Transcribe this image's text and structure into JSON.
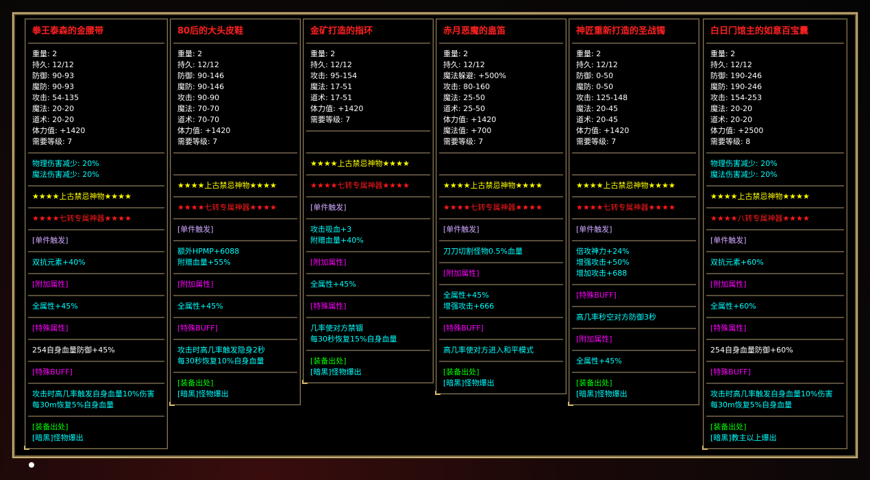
{
  "colors": {
    "white": "#ffffff",
    "cyan": "#00ffff",
    "yellow": "#ffff00",
    "red": "#ff1a1a",
    "lavender": "#d0a8ff",
    "magenta": "#ff00ff",
    "green": "#00ff00",
    "title": "#ff2020",
    "border": "#c9b07a"
  },
  "cards": [
    {
      "title": "拳王泰森的金腰带",
      "sections": [
        {
          "lines": [
            {
              "t": "重量: 2",
              "c": "white"
            },
            {
              "t": "持久: 12/12",
              "c": "white"
            },
            {
              "t": "防御: 90-93",
              "c": "white"
            },
            {
              "t": "魔防: 90-93",
              "c": "white"
            },
            {
              "t": "攻击: 54-135",
              "c": "white"
            },
            {
              "t": "魔法: 20-20",
              "c": "white"
            },
            {
              "t": "道术: 20-20",
              "c": "white"
            },
            {
              "t": "体力值: +1420",
              "c": "white"
            },
            {
              "t": "需要等级: 7",
              "c": "white"
            }
          ]
        },
        {
          "lines": [
            {
              "t": "物理伤害减少: 20%",
              "c": "cyan"
            },
            {
              "t": "魔法伤害减少: 20%",
              "c": "cyan"
            }
          ]
        },
        {
          "lines": [
            {
              "t": "★★★★上古禁忌神物★★★★",
              "c": "yellow"
            }
          ]
        },
        {
          "lines": [
            {
              "t": "★★★★七转专属神器★★★★",
              "c": "red"
            }
          ]
        },
        {
          "lines": [
            {
              "t": "[单件触发]",
              "c": "lavender"
            }
          ]
        },
        {
          "lines": [
            {
              "t": "双抗元素+40%",
              "c": "cyan"
            }
          ]
        },
        {
          "lines": [
            {
              "t": "[附加属性]",
              "c": "magenta"
            }
          ]
        },
        {
          "lines": [
            {
              "t": "全属性+45%",
              "c": "cyan"
            }
          ]
        },
        {
          "lines": [
            {
              "t": "[特殊属性]",
              "c": "magenta"
            }
          ]
        },
        {
          "lines": [
            {
              "t": "254自身血量防御+45%",
              "c": "white"
            }
          ]
        },
        {
          "lines": [
            {
              "t": "[特殊BUFF]",
              "c": "magenta"
            }
          ]
        },
        {
          "lines": [
            {
              "t": "攻击时高几率触发自身血量10%伤害",
              "c": "cyan"
            },
            {
              "t": "每30m恢复5%自身血量",
              "c": "cyan"
            }
          ]
        },
        {
          "lines": [
            {
              "t": "[装备出处]",
              "c": "green"
            },
            {
              "t": "[暗黑]怪物爆出",
              "c": "cyan"
            }
          ]
        }
      ]
    },
    {
      "title": "80后的大头皮鞋",
      "sections": [
        {
          "lines": [
            {
              "t": "重量: 2",
              "c": "white"
            },
            {
              "t": "持久: 12/12",
              "c": "white"
            },
            {
              "t": "防御: 90-146",
              "c": "white"
            },
            {
              "t": "魔防: 90-146",
              "c": "white"
            },
            {
              "t": "攻击: 90-90",
              "c": "white"
            },
            {
              "t": "魔法: 70-70",
              "c": "white"
            },
            {
              "t": "道术: 70-70",
              "c": "white"
            },
            {
              "t": "体力值: +1420",
              "c": "white"
            },
            {
              "t": "需要等级: 7",
              "c": "white"
            }
          ]
        },
        {
          "lines": []
        },
        {
          "lines": [
            {
              "t": "★★★★上古禁忌神物★★★★",
              "c": "yellow"
            }
          ]
        },
        {
          "lines": [
            {
              "t": "★★★★七转专属神器★★★★",
              "c": "red"
            }
          ]
        },
        {
          "lines": [
            {
              "t": "[单件触发]",
              "c": "lavender"
            }
          ]
        },
        {
          "lines": [
            {
              "t": "额外HPMP+6088",
              "c": "cyan"
            },
            {
              "t": "附赠血量+55%",
              "c": "cyan"
            }
          ]
        },
        {
          "lines": [
            {
              "t": "[附加属性]",
              "c": "magenta"
            }
          ]
        },
        {
          "lines": [
            {
              "t": "全属性+45%",
              "c": "cyan"
            }
          ]
        },
        {
          "lines": [
            {
              "t": "[特殊BUFF]",
              "c": "magenta"
            }
          ]
        },
        {
          "lines": [
            {
              "t": "攻击时高几率触发隐身2秒",
              "c": "cyan"
            },
            {
              "t": "每30秒恢复10%自身血量",
              "c": "cyan"
            }
          ]
        },
        {
          "lines": [
            {
              "t": "[装备出处]",
              "c": "green"
            },
            {
              "t": "[暗黑]怪物爆出",
              "c": "cyan"
            }
          ]
        }
      ]
    },
    {
      "title": "金矿打造的指环",
      "sections": [
        {
          "lines": [
            {
              "t": "重量: 2",
              "c": "white"
            },
            {
              "t": "持久: 12/12",
              "c": "white"
            },
            {
              "t": "攻击: 95-154",
              "c": "white"
            },
            {
              "t": "魔法: 17-51",
              "c": "white"
            },
            {
              "t": "道术: 17-51",
              "c": "white"
            },
            {
              "t": "体力值: +1420",
              "c": "white"
            },
            {
              "t": "需要等级: 7",
              "c": "white"
            }
          ]
        },
        {
          "lines": []
        },
        {
          "lines": [
            {
              "t": "★★★★上古禁忌神物★★★★",
              "c": "yellow"
            }
          ]
        },
        {
          "lines": [
            {
              "t": "★★★★七转专属神器★★★★",
              "c": "red"
            }
          ]
        },
        {
          "lines": [
            {
              "t": "[单件触发]",
              "c": "lavender"
            }
          ]
        },
        {
          "lines": [
            {
              "t": "攻击吸血+3",
              "c": "cyan"
            },
            {
              "t": "附赠血量+40%",
              "c": "cyan"
            }
          ]
        },
        {
          "lines": [
            {
              "t": "[附加属性]",
              "c": "magenta"
            }
          ]
        },
        {
          "lines": [
            {
              "t": "全属性+45%",
              "c": "cyan"
            }
          ]
        },
        {
          "lines": [
            {
              "t": "[特殊属性]",
              "c": "magenta"
            }
          ]
        },
        {
          "lines": [
            {
              "t": "几率使对方禁锢",
              "c": "cyan"
            },
            {
              "t": "每30秒恢复15%自身血量",
              "c": "cyan"
            }
          ]
        },
        {
          "lines": [
            {
              "t": "[装备出处]",
              "c": "green"
            },
            {
              "t": "[暗黑]怪物爆出",
              "c": "cyan"
            }
          ]
        }
      ]
    },
    {
      "title": "赤月恶魔的蛊笛",
      "sections": [
        {
          "lines": [
            {
              "t": "重量: 2",
              "c": "white"
            },
            {
              "t": "持久: 12/12",
              "c": "white"
            },
            {
              "t": "魔法躲避: +500%",
              "c": "white"
            },
            {
              "t": "攻击: 80-160",
              "c": "white"
            },
            {
              "t": "魔法: 25-50",
              "c": "white"
            },
            {
              "t": "道术: 25-50",
              "c": "white"
            },
            {
              "t": "体力值: +1420",
              "c": "white"
            },
            {
              "t": "魔法值: +700",
              "c": "white"
            },
            {
              "t": "需要等级: 7",
              "c": "white"
            }
          ]
        },
        {
          "lines": []
        },
        {
          "lines": [
            {
              "t": "★★★★上古禁忌神物★★★★",
              "c": "yellow"
            }
          ]
        },
        {
          "lines": [
            {
              "t": "★★★★七转专属神器★★★★",
              "c": "red"
            }
          ]
        },
        {
          "lines": [
            {
              "t": "[单件触发]",
              "c": "lavender"
            }
          ]
        },
        {
          "lines": [
            {
              "t": "刀刀切割怪物0.5%血量",
              "c": "cyan"
            }
          ]
        },
        {
          "lines": [
            {
              "t": "[附加属性]",
              "c": "magenta"
            }
          ]
        },
        {
          "lines": [
            {
              "t": "全属性+45%",
              "c": "cyan"
            },
            {
              "t": "增强攻击+666",
              "c": "cyan"
            }
          ]
        },
        {
          "lines": [
            {
              "t": "[特殊BUFF]",
              "c": "magenta"
            }
          ]
        },
        {
          "lines": [
            {
              "t": "高几率使对方进入和平模式",
              "c": "cyan"
            }
          ]
        },
        {
          "lines": [
            {
              "t": "[装备出处]",
              "c": "green"
            },
            {
              "t": "[暗黑]怪物爆出",
              "c": "cyan"
            }
          ]
        }
      ]
    },
    {
      "title": "神匠重新打造的圣战镯",
      "sections": [
        {
          "lines": [
            {
              "t": "重量: 2",
              "c": "white"
            },
            {
              "t": "持久: 12/12",
              "c": "white"
            },
            {
              "t": "防御: 0-50",
              "c": "white"
            },
            {
              "t": "魔防: 0-50",
              "c": "white"
            },
            {
              "t": "攻击: 125-148",
              "c": "white"
            },
            {
              "t": "魔法: 20-45",
              "c": "white"
            },
            {
              "t": "道术: 20-45",
              "c": "white"
            },
            {
              "t": "体力值: +1420",
              "c": "white"
            },
            {
              "t": "需要等级: 7",
              "c": "white"
            }
          ]
        },
        {
          "lines": []
        },
        {
          "lines": [
            {
              "t": "★★★★上古禁忌神物★★★★",
              "c": "yellow"
            }
          ]
        },
        {
          "lines": [
            {
              "t": "★★★★七转专属神器★★★★",
              "c": "red"
            }
          ]
        },
        {
          "lines": [
            {
              "t": "[单件触发]",
              "c": "lavender"
            }
          ]
        },
        {
          "lines": [
            {
              "t": "倍攻神力+24%",
              "c": "cyan"
            },
            {
              "t": "增强攻击+50%",
              "c": "cyan"
            },
            {
              "t": "增加攻击+688",
              "c": "cyan"
            }
          ]
        },
        {
          "lines": [
            {
              "t": "[特殊BUFF]",
              "c": "magenta"
            }
          ]
        },
        {
          "lines": [
            {
              "t": "高几率秒空对方防御3秒",
              "c": "cyan"
            }
          ]
        },
        {
          "lines": [
            {
              "t": "[附加属性]",
              "c": "magenta"
            }
          ]
        },
        {
          "lines": [
            {
              "t": "全属性+45%",
              "c": "cyan"
            }
          ]
        },
        {
          "lines": [
            {
              "t": "[装备出处]",
              "c": "green"
            },
            {
              "t": "[暗黑]怪物爆出",
              "c": "cyan"
            }
          ]
        }
      ]
    },
    {
      "title": "白日门馆主的如意百宝囊",
      "sections": [
        {
          "lines": [
            {
              "t": "重量: 2",
              "c": "white"
            },
            {
              "t": "持久: 12/12",
              "c": "white"
            },
            {
              "t": "防御: 190-246",
              "c": "white"
            },
            {
              "t": "魔防: 190-246",
              "c": "white"
            },
            {
              "t": "攻击: 154-253",
              "c": "white"
            },
            {
              "t": "魔法: 20-20",
              "c": "white"
            },
            {
              "t": "道术: 20-20",
              "c": "white"
            },
            {
              "t": "体力值: +2500",
              "c": "white"
            },
            {
              "t": "需要等级: 8",
              "c": "white"
            }
          ]
        },
        {
          "lines": [
            {
              "t": "物理伤害减少: 20%",
              "c": "cyan"
            },
            {
              "t": "魔法伤害减少: 20%",
              "c": "cyan"
            }
          ]
        },
        {
          "lines": [
            {
              "t": "★★★★上古禁忌神物★★★★",
              "c": "yellow"
            }
          ]
        },
        {
          "lines": [
            {
              "t": "★★★★八转专属神器★★★★",
              "c": "red"
            }
          ]
        },
        {
          "lines": [
            {
              "t": "[单件触发]",
              "c": "lavender"
            }
          ]
        },
        {
          "lines": [
            {
              "t": "双抗元素+60%",
              "c": "cyan"
            }
          ]
        },
        {
          "lines": [
            {
              "t": "[附加属性]",
              "c": "magenta"
            }
          ]
        },
        {
          "lines": [
            {
              "t": "全属性+60%",
              "c": "cyan"
            }
          ]
        },
        {
          "lines": [
            {
              "t": "[特殊属性]",
              "c": "magenta"
            }
          ]
        },
        {
          "lines": [
            {
              "t": "254自身血量防御+60%",
              "c": "white"
            }
          ]
        },
        {
          "lines": [
            {
              "t": "[特殊BUFF]",
              "c": "magenta"
            }
          ]
        },
        {
          "lines": [
            {
              "t": "攻击时高几率触发自身血量10%伤害",
              "c": "cyan"
            },
            {
              "t": "每30m恢复5%自身血量",
              "c": "cyan"
            }
          ]
        },
        {
          "lines": [
            {
              "t": "[装备出处]",
              "c": "green"
            },
            {
              "t": "[暗黑]教主以上爆出",
              "c": "cyan"
            }
          ]
        }
      ]
    }
  ]
}
